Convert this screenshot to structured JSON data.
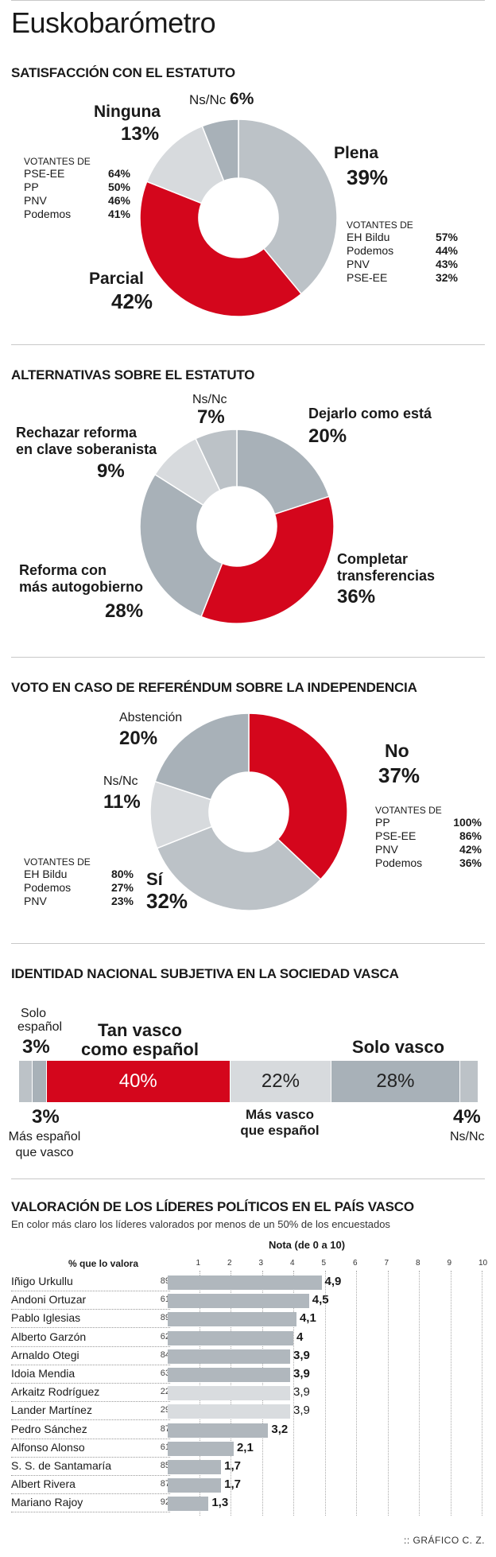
{
  "title": "Euskobarómetro",
  "colors": {
    "red": "#d4061c",
    "gray_dark": "#a8b1b8",
    "gray_mid": "#bcc2c7",
    "gray_light": "#d7dadd",
    "leader_bar": "#b0b7bd",
    "leader_bar_light": "#d9dcdf"
  },
  "chart_data": [
    {
      "type": "pie",
      "title": "SATISFACCIÓN CON EL ESTATUTO",
      "slices": [
        {
          "label": "Plena",
          "value": 39,
          "color": "#bcc2c7"
        },
        {
          "label": "Parcial",
          "value": 42,
          "color": "#d4061c"
        },
        {
          "label": "Ninguna",
          "value": 13,
          "color": "#d7dadd"
        },
        {
          "label": "Ns/Nc",
          "value": 6,
          "color": "#a8b1b8"
        }
      ],
      "pct_labels": {
        "plena": "39%",
        "parcial": "42%",
        "ninguna": "13%",
        "nsnc": "6%"
      },
      "voters_left": {
        "head": "VOTANTES DE",
        "rows": [
          {
            "name": "PSE-EE",
            "value": "64%"
          },
          {
            "name": "PP",
            "value": "50%"
          },
          {
            "name": "PNV",
            "value": "46%"
          },
          {
            "name": "Podemos",
            "value": "41%"
          }
        ]
      },
      "voters_right": {
        "head": "VOTANTES DE",
        "rows": [
          {
            "name": "EH Bildu",
            "value": "57%"
          },
          {
            "name": "Podemos",
            "value": "44%"
          },
          {
            "name": "PNV",
            "value": "43%"
          },
          {
            "name": "PSE-EE",
            "value": "32%"
          }
        ]
      }
    },
    {
      "type": "pie",
      "title": "ALTERNATIVAS SOBRE EL ESTATUTO",
      "slices": [
        {
          "label": "Dejarlo como está",
          "value": 20,
          "color": "#a8b1b8"
        },
        {
          "label": "Completar transferencias",
          "value": 36,
          "color": "#d4061c"
        },
        {
          "label": "Reforma con más autogobierno",
          "value": 28,
          "color": "#a8b1b8"
        },
        {
          "label": "Rechazar reforma en clave soberanista",
          "value": 9,
          "color": "#d7dadd"
        },
        {
          "label": "Ns/Nc",
          "value": 7,
          "color": "#bcc2c7"
        }
      ],
      "text": {
        "dejarlo": "Dejarlo como está",
        "dejarlo_pct": "20%",
        "completar_1": "Completar",
        "completar_2": "transferencias",
        "completar_pct": "36%",
        "reforma_1": "Reforma con",
        "reforma_2": "más autogobierno",
        "reforma_pct": "28%",
        "rechazar_1": "Rechazar reforma",
        "rechazar_2": "en clave soberanista",
        "rechazar_pct": "9%",
        "nsnc": "Ns/Nc",
        "nsnc_pct": "7%"
      }
    },
    {
      "type": "pie",
      "title": "VOTO EN CASO DE REFERÉNDUM SOBRE LA INDEPENDENCIA",
      "slices": [
        {
          "label": "No",
          "value": 37,
          "color": "#d4061c"
        },
        {
          "label": "Sí",
          "value": 32,
          "color": "#bcc2c7"
        },
        {
          "label": "Ns/Nc",
          "value": 11,
          "color": "#d7dadd"
        },
        {
          "label": "Abstención",
          "value": 20,
          "color": "#a8b1b8"
        }
      ],
      "text": {
        "no": "No",
        "no_pct": "37%",
        "si": "Sí",
        "si_pct": "32%",
        "nsnc": "Ns/Nc",
        "nsnc_pct": "11%",
        "abst": "Abstención",
        "abst_pct": "20%"
      },
      "voters_left": {
        "head": "VOTANTES DE",
        "rows": [
          {
            "name": "EH Bildu",
            "value": "80%"
          },
          {
            "name": "Podemos",
            "value": "27%"
          },
          {
            "name": "PNV",
            "value": "23%"
          }
        ]
      },
      "voters_right": {
        "head": "VOTANTES DE",
        "rows": [
          {
            "name": "PP",
            "value": "100%"
          },
          {
            "name": "PSE-EE",
            "value": "86%"
          },
          {
            "name": "PNV",
            "value": "42%"
          },
          {
            "name": "Podemos",
            "value": "36%"
          }
        ]
      }
    },
    {
      "type": "bar",
      "title": "IDENTIDAD NACIONAL SUBJETIVA EN LA SOCIEDAD VASCA",
      "segments": [
        {
          "label": "Solo español",
          "value": 3,
          "pct": "3%",
          "color": "#bcc2c7"
        },
        {
          "label": "Más español que vasco",
          "value": 3,
          "pct": "3%",
          "color": "#a8b1b8"
        },
        {
          "label": "Tan vasco como español",
          "value": 40,
          "pct": "40%",
          "color": "#d4061c"
        },
        {
          "label": "Más vasco que español",
          "value": 22,
          "pct": "22%",
          "color": "#d7dadd"
        },
        {
          "label": "Solo vasco",
          "value": 28,
          "pct": "28%",
          "color": "#a8b1b8"
        },
        {
          "label": "Ns/Nc",
          "value": 4,
          "pct": "4%",
          "color": "#bcc2c7"
        }
      ],
      "text": {
        "solo_esp_1": "Solo",
        "solo_esp_2": "español",
        "tan_1": "Tan vasco",
        "tan_2": "como español",
        "solo_vasco": "Solo vasco",
        "mas_esp_1": "Más español",
        "mas_esp_2": "que vasco",
        "mas_vasco_1": "Más vasco",
        "mas_vasco_2": "que español",
        "nsnc": "Ns/Nc"
      }
    },
    {
      "type": "bar",
      "title": "VALORACIÓN DE LOS LÍDERES POLÍTICOS EN EL PAÍS VASCO",
      "subtitle": "En color más claro los líderes valorados por menos de un 50% de los encuestados",
      "xlabel": "Nota (de 0 a 10)",
      "col_head": "% que lo valora",
      "xlim": [
        0,
        10
      ],
      "ticks": [
        "1",
        "2",
        "3",
        "4",
        "5",
        "6",
        "7",
        "8",
        "9",
        "10"
      ],
      "leaders": [
        {
          "name": "Iñigo Urkullu",
          "pct": "89",
          "score": 4.9,
          "score_label": "4,9",
          "light": false
        },
        {
          "name": "Andoni Ortuzar",
          "pct": "61",
          "score": 4.5,
          "score_label": "4,5",
          "light": false
        },
        {
          "name": "Pablo Iglesias",
          "pct": "89",
          "score": 4.1,
          "score_label": "4,1",
          "light": false
        },
        {
          "name": "Alberto Garzón",
          "pct": "62",
          "score": 4.0,
          "score_label": "4",
          "light": false
        },
        {
          "name": "Arnaldo Otegi",
          "pct": "84",
          "score": 3.9,
          "score_label": "3,9",
          "light": false
        },
        {
          "name": "Idoia Mendia",
          "pct": "63",
          "score": 3.9,
          "score_label": "3,9",
          "light": false
        },
        {
          "name": "Arkaitz Rodríguez",
          "pct": "22",
          "score": 3.9,
          "score_label": "3,9",
          "light": true
        },
        {
          "name": "Lander Martínez",
          "pct": "29",
          "score": 3.9,
          "score_label": "3,9",
          "light": true
        },
        {
          "name": "Pedro Sánchez",
          "pct": "87",
          "score": 3.2,
          "score_label": "3,2",
          "light": false
        },
        {
          "name": "Alfonso Alonso",
          "pct": "61",
          "score": 2.1,
          "score_label": "2,1",
          "light": false
        },
        {
          "name": "S. S. de Santamaría",
          "pct": "85",
          "score": 1.7,
          "score_label": "1,7",
          "light": false
        },
        {
          "name": "Albert Rivera",
          "pct": "87",
          "score": 1.7,
          "score_label": "1,7",
          "light": false
        },
        {
          "name": "Mariano Rajoy",
          "pct": "92",
          "score": 1.3,
          "score_label": "1,3",
          "light": false
        }
      ]
    }
  ],
  "credit": ":: GRÁFICO C. Z."
}
